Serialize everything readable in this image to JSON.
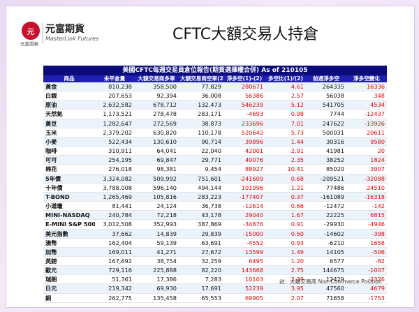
{
  "logo": {
    "mark": "元",
    "name_zh": "元富期貨",
    "name_en": "MasterLink Futures",
    "sub": "元富證券"
  },
  "page_title": "CFTC大額交易人持倉",
  "chart_data": {
    "type": "table",
    "title": "美國CFTC每週交易員倉位報告(期貨選擇權合併) As of  210105",
    "columns": [
      "商品",
      "未平倉量",
      "大額交易商多單",
      "大額交易商空單(2)",
      "淨多空(1)-(2)",
      "多空比(1)/(2)",
      "前週淨多空",
      "淨多空變化"
    ],
    "rows": [
      [
        "黃金",
        "810,238",
        "358,500",
        "77,829",
        "280671",
        "4.61",
        "264335",
        "16336"
      ],
      [
        "白銀",
        "207,653",
        "92,394",
        "36,008",
        "56386",
        "2.57",
        "56038",
        "348"
      ],
      [
        "原油",
        "2,632,582",
        "678,712",
        "132,473",
        "546239",
        "5.12",
        "541705",
        "4534"
      ],
      [
        "天然氣",
        "1,173,521",
        "278,478",
        "283,171",
        "-4693",
        "0.98",
        "7744",
        "-12437"
      ],
      [
        "黃豆",
        "1,282,647",
        "272,569",
        "38,873",
        "233696",
        "7.01",
        "247622",
        "-13926"
      ],
      [
        "玉米",
        "2,379,202",
        "630,820",
        "110,178",
        "520642",
        "5.73",
        "500031",
        "20611"
      ],
      [
        "小麥",
        "522,434",
        "130,610",
        "90,714",
        "39896",
        "1.44",
        "30316",
        "9580"
      ],
      [
        "咖啡",
        "310,911",
        "64,041",
        "22,040",
        "42001",
        "2.91",
        "41981",
        "20"
      ],
      [
        "可可",
        "254,195",
        "69,847",
        "29,771",
        "40076",
        "2.35",
        "38252",
        "1824"
      ],
      [
        "棉花",
        "276,018",
        "98,381",
        "9,454",
        "88927",
        "10.41",
        "85020",
        "3907"
      ],
      [
        "5年債",
        "3,324,082",
        "509,992",
        "751,601",
        "-241609",
        "0.68",
        "-209521",
        "-32088"
      ],
      [
        "十年債",
        "3,788,008",
        "596,140",
        "494,144",
        "101996",
        "1.21",
        "77486",
        "24510"
      ],
      [
        "T-BOND",
        "1,265,469",
        "105,816",
        "283,223",
        "-177407",
        "0.37",
        "-161089",
        "-16318"
      ],
      [
        "小道瓊",
        "81,441",
        "24,124",
        "36,738",
        "-12614",
        "0.66",
        "-12472",
        "-142"
      ],
      [
        "MINI-NASDAQ",
        "240,784",
        "72,218",
        "43,178",
        "29040",
        "1.67",
        "22225",
        "6815"
      ],
      [
        "E-MINI S&P 500",
        "3,012,508",
        "352,993",
        "387,869",
        "-34876",
        "0.91",
        "-29930",
        "-4946"
      ],
      [
        "美元指數",
        "37,662",
        "14,839",
        "29,839",
        "-15000",
        "0.50",
        "-14602",
        "-398"
      ],
      [
        "澳幣",
        "162,404",
        "59,139",
        "63,691",
        "-4552",
        "0.93",
        "-6210",
        "1658"
      ],
      [
        "加幣",
        "169,011",
        "41,271",
        "27,672",
        "13599",
        "1.49",
        "14105",
        "-506"
      ],
      [
        "英鎊",
        "167,692",
        "38,754",
        "32,259",
        "6495",
        "1.20",
        "6577",
        "-82"
      ],
      [
        "歐元",
        "729,116",
        "225,888",
        "82,220",
        "143668",
        "2.75",
        "144675",
        "-1007"
      ],
      [
        "瑞朗",
        "51,361",
        "17,386",
        "7,283",
        "10103",
        "2.39",
        "12429",
        "-2326"
      ],
      [
        "日元",
        "219,342",
        "69,930",
        "17,691",
        "52239",
        "3.95",
        "47560",
        "4679"
      ],
      [
        "銅",
        "262,775",
        "135,458",
        "65,553",
        "69905",
        "2.07",
        "71658",
        "-1753"
      ]
    ],
    "footnote": "註：大額交易商 Non-Commerce Position"
  },
  "colors": {
    "header_bar": "#0b0b7a",
    "column_header": "#1f1fb0",
    "row_alt": "#ebf4fc",
    "highlight_red": "#e60000",
    "logo_red": "#c8102e"
  }
}
